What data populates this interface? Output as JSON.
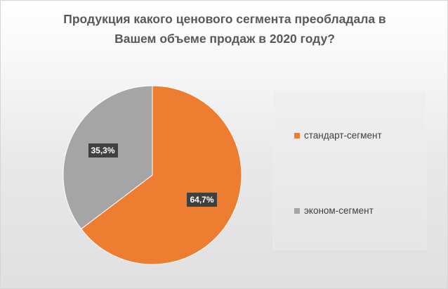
{
  "chart_data": {
    "type": "pie",
    "title_lines": [
      "Продукция какого ценового сегмента преобладала в",
      "Вашем объеме продаж  в 2020 году?"
    ],
    "categories": [
      "стандарт-сегмент",
      "эконом-сегмент"
    ],
    "values": [
      64.7,
      35.3
    ],
    "data_labels": [
      "64,7%",
      "35,3%"
    ],
    "colors": [
      "#ed7d31",
      "#a5a5a5"
    ],
    "legend_position": "right",
    "units": "%"
  }
}
